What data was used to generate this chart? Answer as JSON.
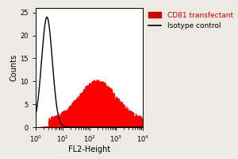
{
  "title": "",
  "xlabel": "FL2-Height",
  "ylabel": "Counts",
  "xlim_log": [
    0,
    4
  ],
  "ylim": [
    0,
    26
  ],
  "yticks": [
    0,
    5,
    10,
    15,
    20,
    25
  ],
  "legend_entries": [
    "CD81 transfectant",
    "Isotype control"
  ],
  "legend_colors": [
    "#cc0000",
    "#000000"
  ],
  "bg_color": "#ede9e3",
  "plot_bg": "#ffffff",
  "iso_log_mean": 0.42,
  "iso_log_std": 0.2,
  "iso_peak": 24.0,
  "cd81_log_mean": 2.3,
  "cd81_log_std": 0.7,
  "cd81_peak": 8.5,
  "cd81_noise_amp": 2.0,
  "figsize": [
    3.0,
    2.0
  ],
  "dpi": 100
}
